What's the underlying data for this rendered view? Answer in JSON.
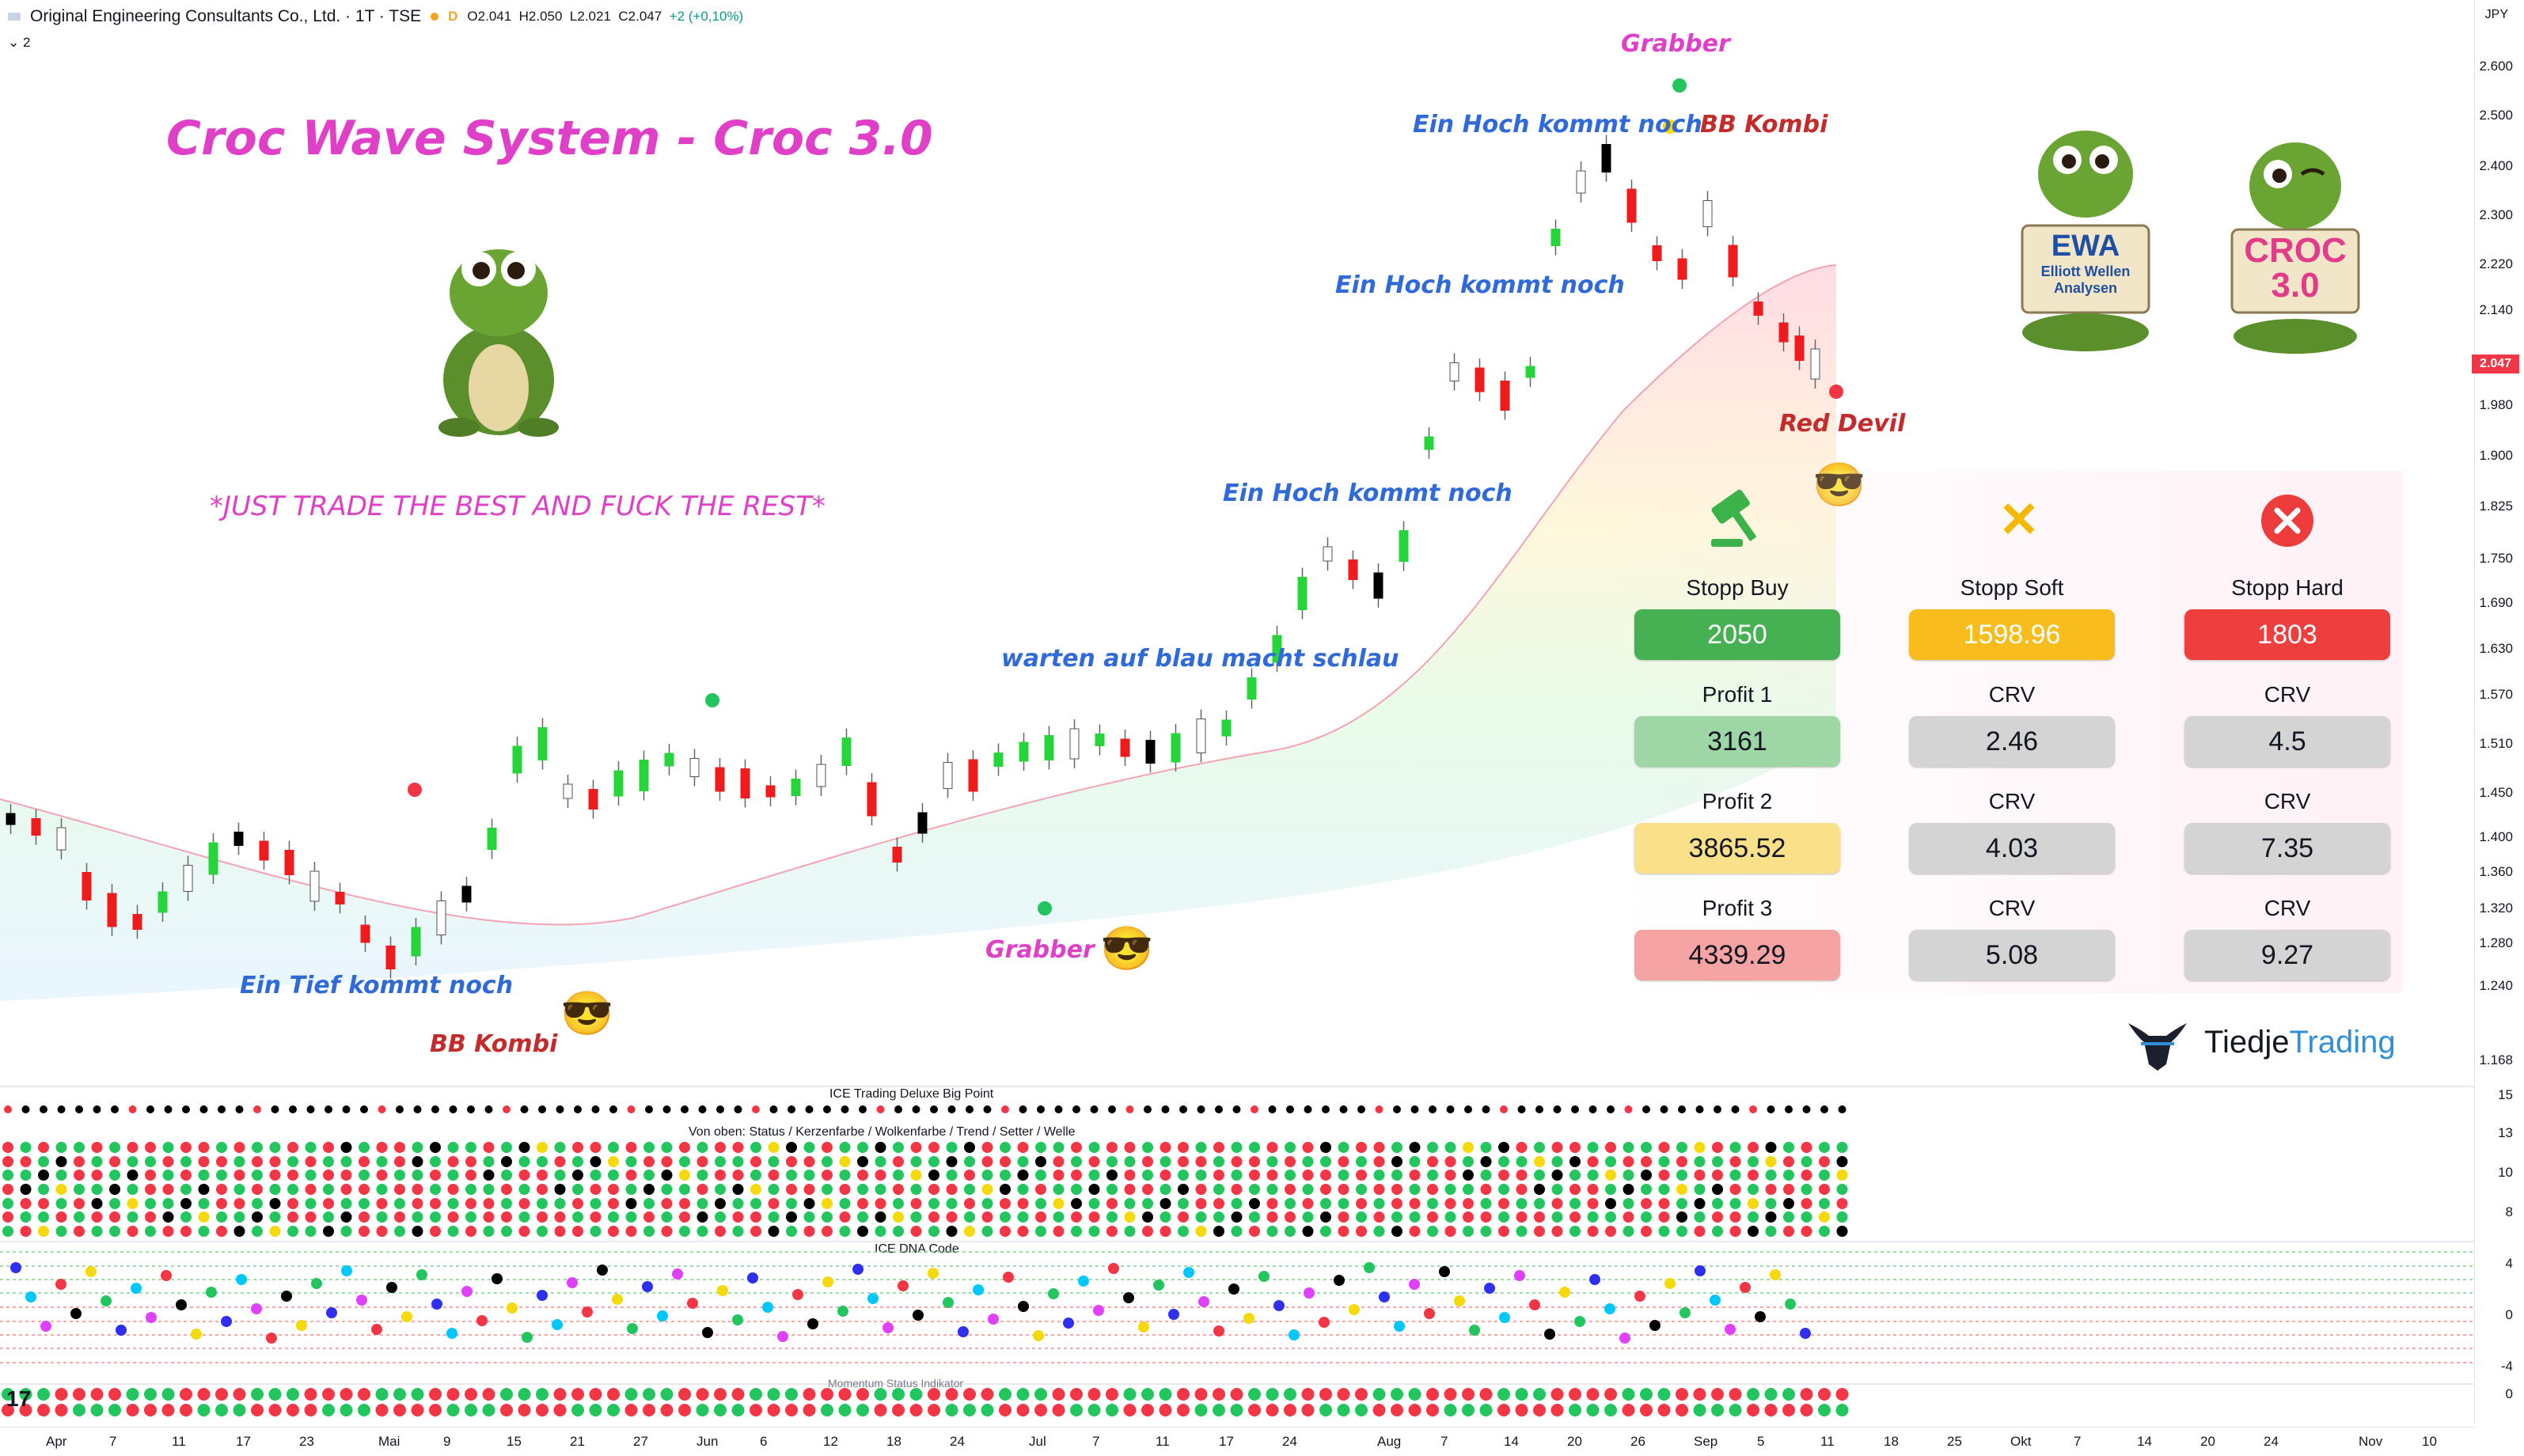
{
  "header": {
    "symbol": "Original Engineering Consultants Co., Ltd. · 1T · TSE",
    "badge": "D",
    "ohlc": {
      "o": "O2.041",
      "h": "H2.050",
      "l": "L2.021",
      "c": "C2.047",
      "chg": "+2 (+0,10%)"
    },
    "collapse": "2"
  },
  "price_axis": {
    "currency": "JPY",
    "ticks": [
      "2.600",
      "2.500",
      "2.400",
      "2.300",
      "2.220",
      "2.140",
      "1.980",
      "1.900",
      "1.825",
      "1.750",
      "1.690",
      "1.630",
      "1.570",
      "1.510",
      "1.450",
      "1.400",
      "1.360",
      "1.320",
      "1.280",
      "1.240",
      "1.168"
    ],
    "current": "2.047"
  },
  "lower_axis_ticks": [
    "15",
    "13",
    "10",
    "8",
    "4",
    "0",
    "-4",
    "0"
  ],
  "time_axis": [
    "Apr",
    "7",
    "11",
    "17",
    "23",
    "Mai",
    "9",
    "15",
    "21",
    "27",
    "Jun",
    "6",
    "12",
    "18",
    "24",
    "Jul",
    "7",
    "11",
    "17",
    "24",
    "Aug",
    "7",
    "14",
    "20",
    "26",
    "Sep",
    "5",
    "11",
    "18",
    "25",
    "Okt",
    "7",
    "14",
    "20",
    "24",
    "Nov",
    "10"
  ],
  "overlay": {
    "title": "Croc Wave System - Croc 3.0",
    "slogan": "*JUST TRADE THE BEST AND FUCK THE REST*",
    "annotations": {
      "grabber_top": "Grabber",
      "bb_kombi_top": "BB Kombi",
      "ein_hoch_1": "Ein Hoch kommt noch",
      "ein_hoch_2": "Ein Hoch kommt noch",
      "ein_hoch_3": "Ein Hoch kommt noch",
      "red_devil": "Red Devil",
      "warten": "warten auf blau macht schlau",
      "grabber_mid": "Grabber",
      "ein_tief": "Ein Tief kommt noch",
      "bb_kombi_bottom": "BB Kombi"
    },
    "sign_ewa": {
      "big": "EWA",
      "small1": "Elliott Wellen",
      "small2": "Analysen"
    },
    "sign_croc": {
      "line1": "CROC",
      "line2": "3.0"
    },
    "brand": {
      "part1": "Tiedje",
      "part2": "Trading"
    }
  },
  "stats": {
    "headers": [
      "Stopp Buy",
      "Stopp Soft",
      "Stopp Hard"
    ],
    "stops": [
      "2050",
      "1598.96",
      "1803"
    ],
    "rows": [
      {
        "label": "Profit 1",
        "value": "3161",
        "crv_label1": "CRV",
        "crv1": "2.46",
        "crv_label2": "CRV",
        "crv2": "4.5"
      },
      {
        "label": "Profit 2",
        "value": "3865.52",
        "crv_label1": "CRV",
        "crv1": "4.03",
        "crv_label2": "CRV",
        "crv2": "7.35"
      },
      {
        "label": "Profit 3",
        "value": "4339.29",
        "crv_label1": "CRV",
        "crv1": "5.08",
        "crv_label2": "CRV",
        "crv2": "9.27"
      }
    ]
  },
  "panes": {
    "big_point": "ICE Trading Deluxe Big Point",
    "subtitle": "Von oben: Status / Kerzenfarbe / Wolkenfarbe / Trend / Setter / Welle",
    "dna": "ICE DNA Code",
    "momentum": "Momentum Status Indikator"
  },
  "colors": {
    "green": "#22c55e",
    "red": "#f23645",
    "black": "#000000",
    "yellow": "#f5d90a",
    "magenta": "#e040c8",
    "blue": "#2f6ad8"
  }
}
